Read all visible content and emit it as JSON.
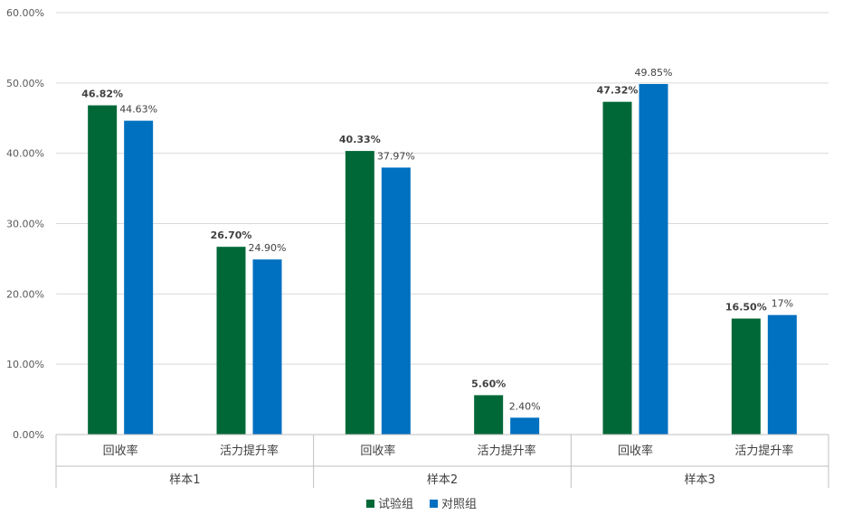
{
  "chart_data": {
    "type": "bar",
    "title": "",
    "xlabel": "",
    "ylabel": "",
    "ylim": [
      0,
      60
    ],
    "y_ticks": [
      "0.00%",
      "10.00%",
      "20.00%",
      "30.00%",
      "40.00%",
      "50.00%",
      "60.00%"
    ],
    "grid": true,
    "legend_position": "bottom",
    "groups": [
      {
        "label": "样本1",
        "categories": [
          "回收率",
          "活力提升率"
        ]
      },
      {
        "label": "样本2",
        "categories": [
          "回收率",
          "活力提升率"
        ]
      },
      {
        "label": "样本3",
        "categories": [
          "回收率",
          "活力提升率"
        ]
      }
    ],
    "series": [
      {
        "name": "试验组",
        "color": "#006837",
        "values": [
          46.82,
          26.7,
          40.33,
          5.6,
          47.32,
          16.5
        ],
        "labels": [
          "46.82%",
          "26.70%",
          "40.33%",
          "5.60%",
          "47.32%",
          "16.50%"
        ],
        "bold_labels": true
      },
      {
        "name": "对照组",
        "color": "#0070C0",
        "values": [
          44.63,
          24.9,
          37.97,
          2.4,
          49.85,
          17.0
        ],
        "labels": [
          "44.63%",
          "24.90%",
          "37.97%",
          "2.40%",
          "49.85%",
          "17%"
        ],
        "bold_labels": false
      }
    ]
  }
}
